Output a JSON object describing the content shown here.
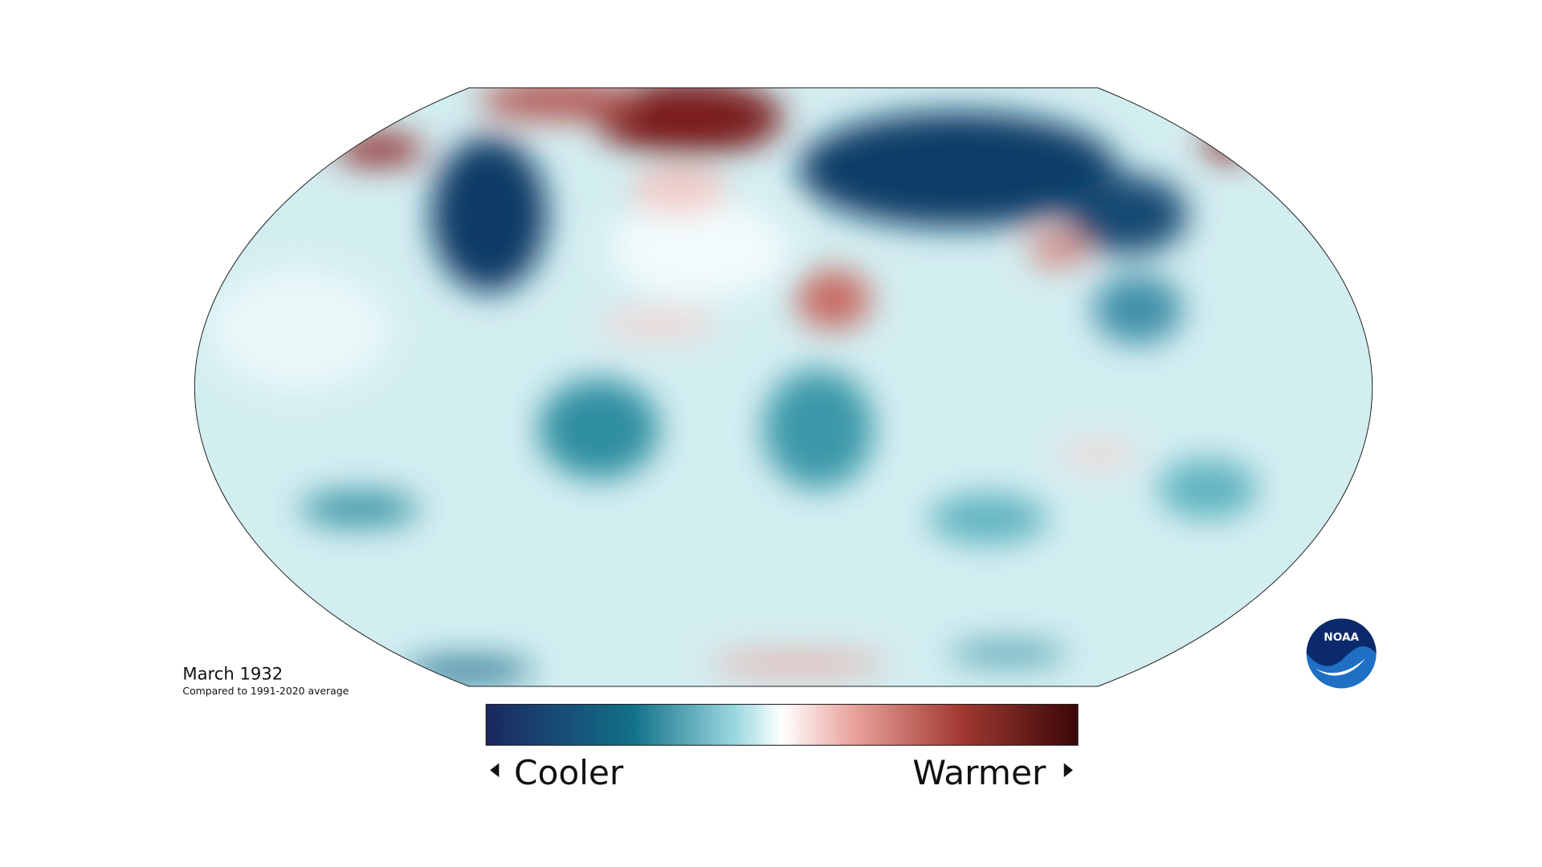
{
  "header": {
    "title": "March 1932",
    "subtitle": "Compared to 1991-2020 average"
  },
  "legend": {
    "low_label": "Cooler",
    "high_label": "Warmer"
  },
  "logo": {
    "text": "NOAA"
  }
}
